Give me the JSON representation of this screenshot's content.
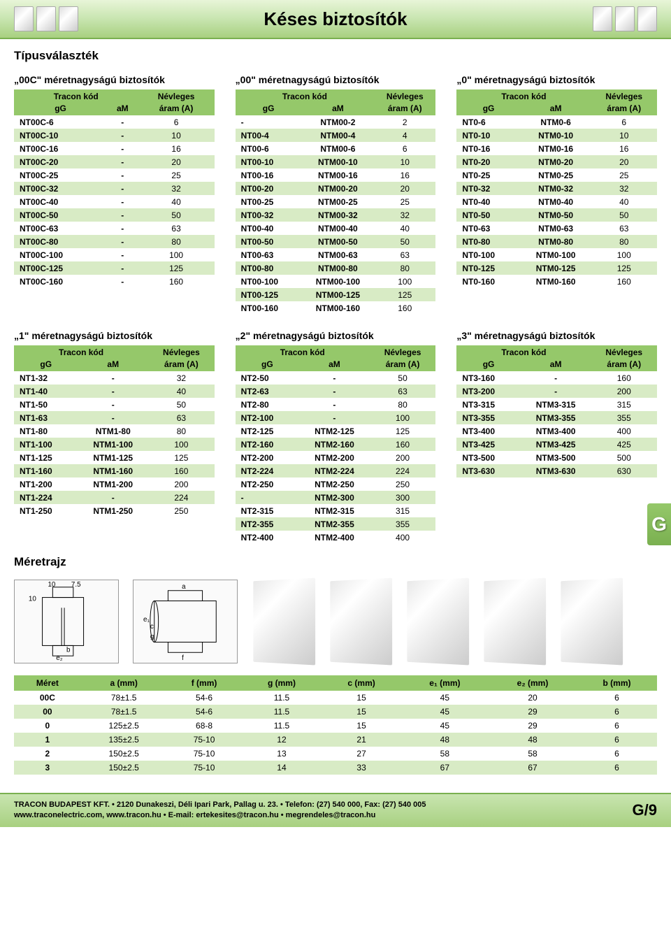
{
  "page": {
    "title": "Késes biztosítók",
    "section": "Típusválaszték",
    "dim_section": "Méretrajz",
    "side_tab": "G",
    "page_number": "G/9"
  },
  "colors": {
    "header_light": "#e8f5d8",
    "header_dark": "#a8d080",
    "table_header": "#95c86a",
    "row_even": "#d8ebc5",
    "border": "#7ab050"
  },
  "column_labels": {
    "tracon": "Tracon kód",
    "gg": "gG",
    "am": "aM",
    "rated": "Névleges",
    "current": "áram (A)"
  },
  "tables_top": [
    {
      "title": "„00C\" méretnagyságú biztosítók",
      "rows": [
        [
          "NT00C-6",
          "-",
          "6"
        ],
        [
          "NT00C-10",
          "-",
          "10"
        ],
        [
          "NT00C-16",
          "-",
          "16"
        ],
        [
          "NT00C-20",
          "-",
          "20"
        ],
        [
          "NT00C-25",
          "-",
          "25"
        ],
        [
          "NT00C-32",
          "-",
          "32"
        ],
        [
          "NT00C-40",
          "-",
          "40"
        ],
        [
          "NT00C-50",
          "-",
          "50"
        ],
        [
          "NT00C-63",
          "-",
          "63"
        ],
        [
          "NT00C-80",
          "-",
          "80"
        ],
        [
          "NT00C-100",
          "-",
          "100"
        ],
        [
          "NT00C-125",
          "-",
          "125"
        ],
        [
          "NT00C-160",
          "-",
          "160"
        ]
      ]
    },
    {
      "title": "„00\" méretnagyságú biztosítók",
      "rows": [
        [
          "-",
          "NTM00-2",
          "2"
        ],
        [
          "NT00-4",
          "NTM00-4",
          "4"
        ],
        [
          "NT00-6",
          "NTM00-6",
          "6"
        ],
        [
          "NT00-10",
          "NTM00-10",
          "10"
        ],
        [
          "NT00-16",
          "NTM00-16",
          "16"
        ],
        [
          "NT00-20",
          "NTM00-20",
          "20"
        ],
        [
          "NT00-25",
          "NTM00-25",
          "25"
        ],
        [
          "NT00-32",
          "NTM00-32",
          "32"
        ],
        [
          "NT00-40",
          "NTM00-40",
          "40"
        ],
        [
          "NT00-50",
          "NTM00-50",
          "50"
        ],
        [
          "NT00-63",
          "NTM00-63",
          "63"
        ],
        [
          "NT00-80",
          "NTM00-80",
          "80"
        ],
        [
          "NT00-100",
          "NTM00-100",
          "100"
        ],
        [
          "NT00-125",
          "NTM00-125",
          "125"
        ],
        [
          "NT00-160",
          "NTM00-160",
          "160"
        ]
      ]
    },
    {
      "title": "„0\" méretnagyságú biztosítók",
      "rows": [
        [
          "NT0-6",
          "NTM0-6",
          "6"
        ],
        [
          "NT0-10",
          "NTM0-10",
          "10"
        ],
        [
          "NT0-16",
          "NTM0-16",
          "16"
        ],
        [
          "NT0-20",
          "NTM0-20",
          "20"
        ],
        [
          "NT0-25",
          "NTM0-25",
          "25"
        ],
        [
          "NT0-32",
          "NTM0-32",
          "32"
        ],
        [
          "NT0-40",
          "NTM0-40",
          "40"
        ],
        [
          "NT0-50",
          "NTM0-50",
          "50"
        ],
        [
          "NT0-63",
          "NTM0-63",
          "63"
        ],
        [
          "NT0-80",
          "NTM0-80",
          "80"
        ],
        [
          "NT0-100",
          "NTM0-100",
          "100"
        ],
        [
          "NT0-125",
          "NTM0-125",
          "125"
        ],
        [
          "NT0-160",
          "NTM0-160",
          "160"
        ]
      ]
    }
  ],
  "tables_bottom": [
    {
      "title": "„1\" méretnagyságú biztosítók",
      "rows": [
        [
          "NT1-32",
          "-",
          "32"
        ],
        [
          "NT1-40",
          "-",
          "40"
        ],
        [
          "NT1-50",
          "-",
          "50"
        ],
        [
          "NT1-63",
          "-",
          "63"
        ],
        [
          "NT1-80",
          "NTM1-80",
          "80"
        ],
        [
          "NT1-100",
          "NTM1-100",
          "100"
        ],
        [
          "NT1-125",
          "NTM1-125",
          "125"
        ],
        [
          "NT1-160",
          "NTM1-160",
          "160"
        ],
        [
          "NT1-200",
          "NTM1-200",
          "200"
        ],
        [
          "NT1-224",
          "-",
          "224"
        ],
        [
          "NT1-250",
          "NTM1-250",
          "250"
        ]
      ]
    },
    {
      "title": "„2\" méretnagyságú biztosítók",
      "rows": [
        [
          "NT2-50",
          "-",
          "50"
        ],
        [
          "NT2-63",
          "-",
          "63"
        ],
        [
          "NT2-80",
          "-",
          "80"
        ],
        [
          "NT2-100",
          "-",
          "100"
        ],
        [
          "NT2-125",
          "NTM2-125",
          "125"
        ],
        [
          "NT2-160",
          "NTM2-160",
          "160"
        ],
        [
          "NT2-200",
          "NTM2-200",
          "200"
        ],
        [
          "NT2-224",
          "NTM2-224",
          "224"
        ],
        [
          "NT2-250",
          "NTM2-250",
          "250"
        ],
        [
          "-",
          "NTM2-300",
          "300"
        ],
        [
          "NT2-315",
          "NTM2-315",
          "315"
        ],
        [
          "NT2-355",
          "NTM2-355",
          "355"
        ],
        [
          "NT2-400",
          "NTM2-400",
          "400"
        ]
      ]
    },
    {
      "title": "„3\" méretnagyságú biztosítók",
      "rows": [
        [
          "NT3-160",
          "-",
          "160"
        ],
        [
          "NT3-200",
          "-",
          "200"
        ],
        [
          "NT3-315",
          "NTM3-315",
          "315"
        ],
        [
          "NT3-355",
          "NTM3-355",
          "355"
        ],
        [
          "NT3-400",
          "NTM3-400",
          "400"
        ],
        [
          "NT3-425",
          "NTM3-425",
          "425"
        ],
        [
          "NT3-500",
          "NTM3-500",
          "500"
        ],
        [
          "NT3-630",
          "NTM3-630",
          "630"
        ]
      ]
    }
  ],
  "dim_drawing_labels": {
    "d10a": "10",
    "d75": "7.5",
    "d10b": "10",
    "a": "a",
    "b": "b",
    "c": "c",
    "e1": "e₁",
    "e2": "e₂",
    "f": "f",
    "g": "g"
  },
  "dim_table": {
    "columns": [
      "Méret",
      "a (mm)",
      "f (mm)",
      "g (mm)",
      "c (mm)",
      "e₁ (mm)",
      "e₂ (mm)",
      "b (mm)"
    ],
    "rows": [
      [
        "00C",
        "78±1.5",
        "54-6",
        "11.5",
        "15",
        "45",
        "20",
        "6"
      ],
      [
        "00",
        "78±1.5",
        "54-6",
        "11.5",
        "15",
        "45",
        "29",
        "6"
      ],
      [
        "0",
        "125±2.5",
        "68-8",
        "11.5",
        "15",
        "45",
        "29",
        "6"
      ],
      [
        "1",
        "135±2.5",
        "75-10",
        "12",
        "21",
        "48",
        "48",
        "6"
      ],
      [
        "2",
        "150±2.5",
        "75-10",
        "13",
        "27",
        "58",
        "58",
        "6"
      ],
      [
        "3",
        "150±2.5",
        "75-10",
        "14",
        "33",
        "67",
        "67",
        "6"
      ]
    ]
  },
  "footer": {
    "line1": "TRACON BUDAPEST KFT. • 2120 Dunakeszi, Déli Ipari Park, Pallag u. 23. • Telefon: (27) 540 000, Fax: (27) 540 005",
    "line2": "www.traconelectric.com, www.tracon.hu • E-mail: ertekesites@tracon.hu • megrendeles@tracon.hu"
  }
}
